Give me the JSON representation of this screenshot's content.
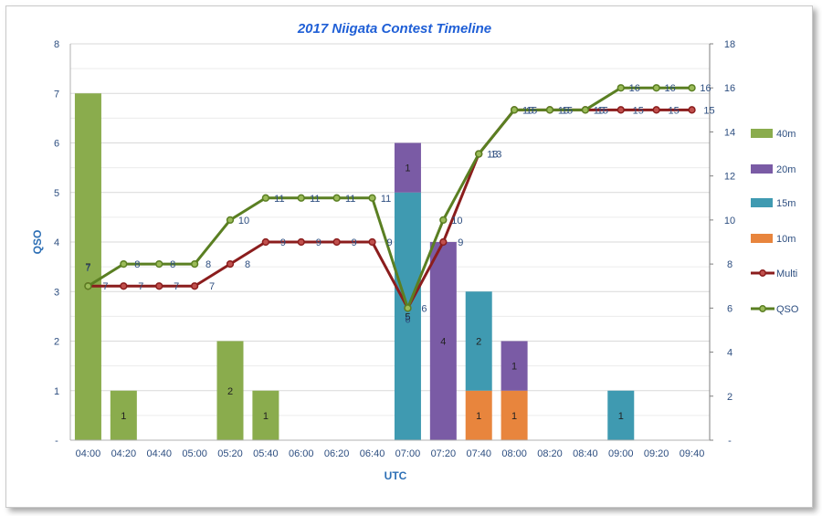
{
  "chart_data": {
    "type": "bar",
    "title": "2017 Niigata Contest Timeline",
    "xlabel": "UTC",
    "ylabel": "QSO",
    "ylim": [
      0,
      8
    ],
    "y2lim": [
      0,
      18
    ],
    "left_ticks": [
      "-",
      "1",
      "2",
      "3",
      "4",
      "5",
      "6",
      "7",
      "8"
    ],
    "right_ticks": [
      "-",
      "2",
      "4",
      "6",
      "8",
      "10",
      "12",
      "14",
      "16",
      "18"
    ],
    "categories": [
      "04:00",
      "04:20",
      "04:40",
      "05:00",
      "05:20",
      "05:40",
      "06:00",
      "06:20",
      "06:40",
      "07:00",
      "07:20",
      "07:40",
      "08:00",
      "08:20",
      "08:40",
      "09:00",
      "09:20",
      "09:40"
    ],
    "stack_order": [
      "10m",
      "15m",
      "20m",
      "40m"
    ],
    "grid": true,
    "legend": "right",
    "series": [
      {
        "name": "40m",
        "type": "bar",
        "axis": "left",
        "color": "#8aac4d",
        "values": [
          7,
          1,
          0,
          0,
          2,
          1,
          0,
          0,
          0,
          0,
          0,
          0,
          0,
          0,
          0,
          0,
          0,
          0
        ]
      },
      {
        "name": "20m",
        "type": "bar",
        "axis": "left",
        "color": "#7a5ba5",
        "values": [
          0,
          0,
          0,
          0,
          0,
          0,
          0,
          0,
          0,
          1,
          4,
          0,
          1,
          0,
          0,
          0,
          0,
          0
        ]
      },
      {
        "name": "15m",
        "type": "bar",
        "axis": "left",
        "color": "#3f9ab1",
        "values": [
          0,
          0,
          0,
          0,
          0,
          0,
          0,
          0,
          0,
          5,
          0,
          2,
          0,
          0,
          0,
          1,
          0,
          0
        ]
      },
      {
        "name": "10m",
        "type": "bar",
        "axis": "left",
        "color": "#e8853d",
        "values": [
          0,
          0,
          0,
          0,
          0,
          0,
          0,
          0,
          0,
          0,
          0,
          1,
          1,
          0,
          0,
          0,
          0,
          0
        ]
      },
      {
        "name": "Multi",
        "type": "line",
        "axis": "right",
        "color": "#8b1d1d",
        "values": [
          7,
          7,
          7,
          7,
          8,
          9,
          9,
          9,
          9,
          6,
          9,
          13,
          15,
          15,
          15,
          15,
          15,
          15
        ]
      },
      {
        "name": "QSO",
        "type": "line",
        "axis": "right",
        "color": "#5a7f22",
        "values": [
          7,
          8,
          8,
          8,
          10,
          11,
          11,
          11,
          11,
          6,
          10,
          13,
          15,
          15,
          15,
          16,
          16,
          16
        ]
      }
    ]
  }
}
